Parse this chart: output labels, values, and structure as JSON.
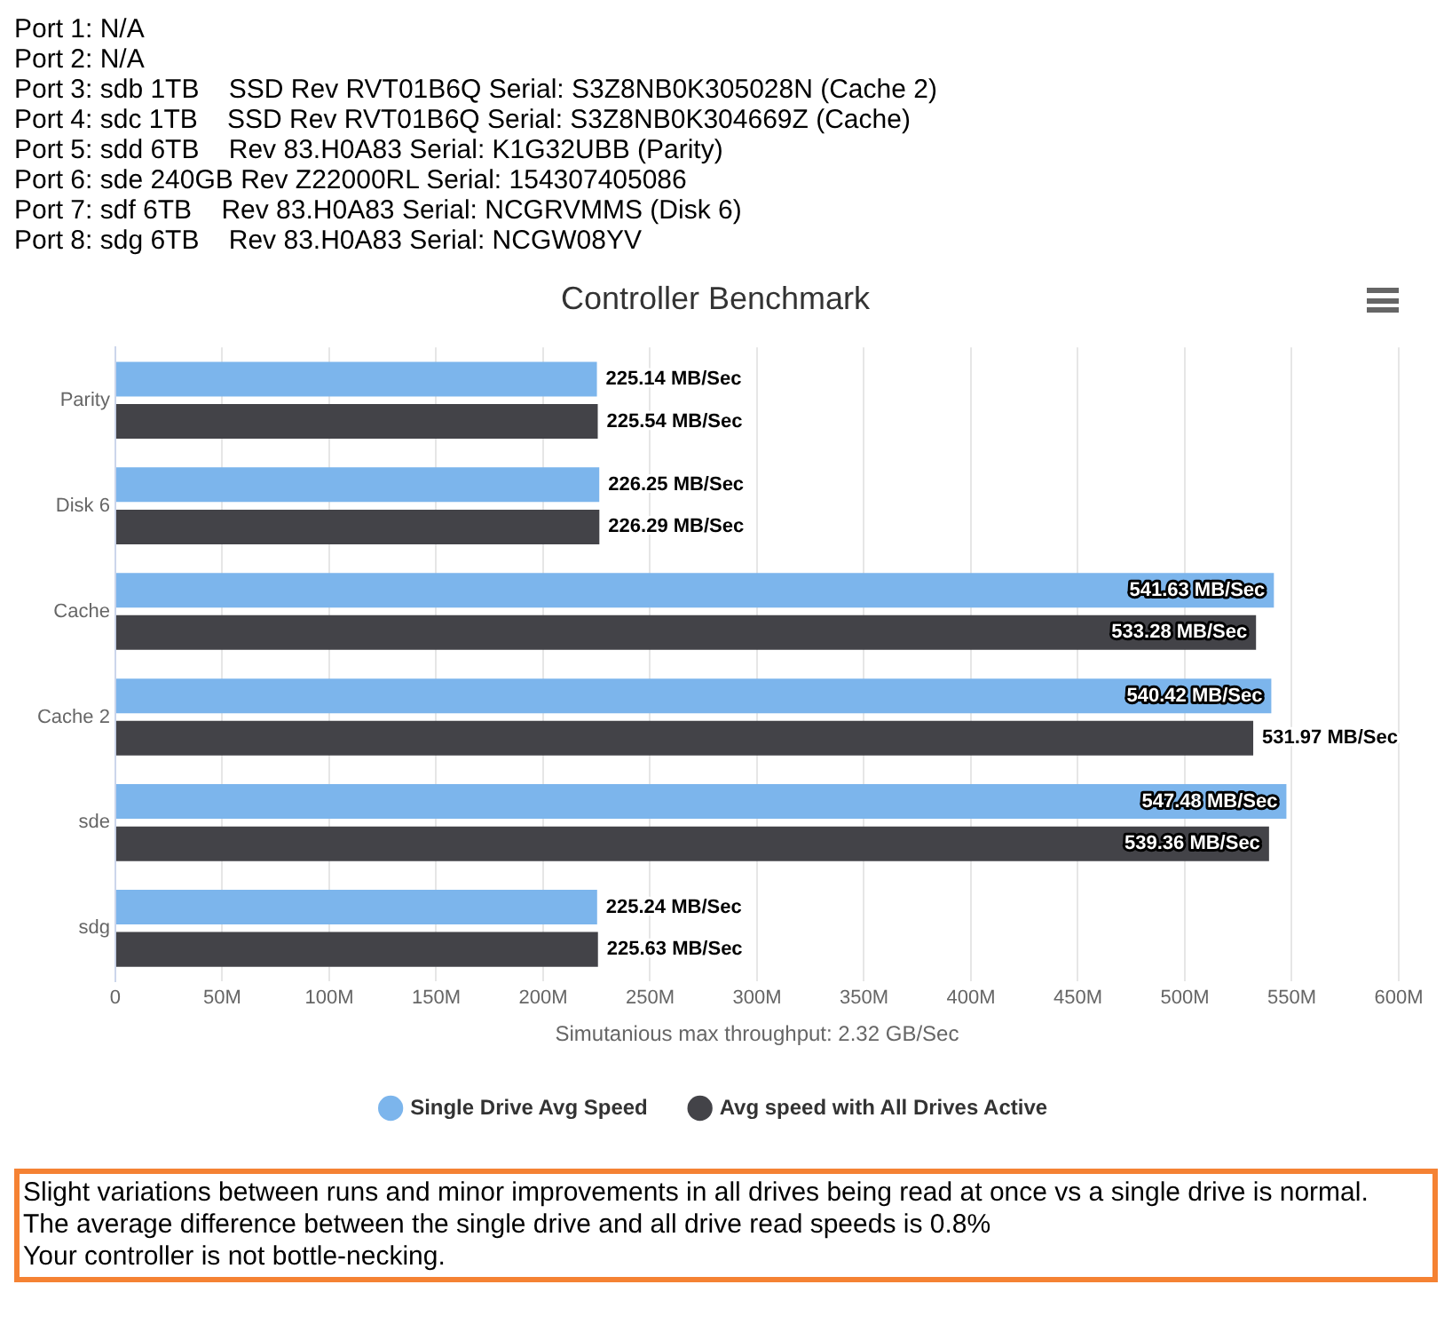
{
  "chart_data": {
    "type": "bar",
    "orientation": "horizontal",
    "title": "Controller Benchmark",
    "xlabel": "Simutanious max throughput: 2.32 GB/Sec",
    "categories": [
      "Parity",
      "Disk 6",
      "Cache",
      "Cache 2",
      "sde",
      "sdg"
    ],
    "series": [
      {
        "name": "Single Drive Avg Speed",
        "color": "#7cb5ec",
        "values": [
          225.14,
          226.25,
          541.63,
          540.42,
          547.48,
          225.24
        ],
        "value_labels": [
          "225.14 MB/Sec",
          "226.25 MB/Sec",
          "541.63 MB/Sec",
          "540.42 MB/Sec",
          "547.48 MB/Sec",
          "225.24 MB/Sec"
        ]
      },
      {
        "name": "Avg speed with All Drives Active",
        "color": "#434348",
        "values": [
          225.54,
          226.29,
          533.28,
          531.97,
          539.36,
          225.63
        ],
        "value_labels": [
          "225.54 MB/Sec",
          "226.29 MB/Sec",
          "533.28 MB/Sec",
          "531.97 MB/Sec",
          "539.36 MB/Sec",
          "225.63 MB/Sec"
        ]
      }
    ],
    "xlim": [
      0,
      600
    ],
    "xticks": [
      {
        "value": 0,
        "label": "0"
      },
      {
        "value": 50,
        "label": "50M"
      },
      {
        "value": 100,
        "label": "100M"
      },
      {
        "value": 150,
        "label": "150M"
      },
      {
        "value": 200,
        "label": "200M"
      },
      {
        "value": 250,
        "label": "250M"
      },
      {
        "value": 300,
        "label": "300M"
      },
      {
        "value": 350,
        "label": "350M"
      },
      {
        "value": 400,
        "label": "400M"
      },
      {
        "value": 450,
        "label": "450M"
      },
      {
        "value": 500,
        "label": "500M"
      },
      {
        "value": 550,
        "label": "550M"
      },
      {
        "value": 600,
        "label": "600M"
      }
    ],
    "grid": "x",
    "legend": "bottom",
    "marker": "circle",
    "annotations": [
      "Port 1: N/A",
      "Port 2: N/A",
      "Port 3: sdb 1TB    SSD Rev RVT01B6Q Serial: S3Z8NB0K305028N (Cache 2)",
      "Port 4: sdc 1TB    SSD Rev RVT01B6Q Serial: S3Z8NB0K304669Z (Cache)",
      "Port 5: sdd 6TB    Rev 83.H0A83 Serial: K1G32UBB (Parity)",
      "Port 6: sde 240GB Rev Z22000RL Serial: 154307405086",
      "Port 7: sdf 6TB    Rev 83.H0A83 Serial: NCGRVMMS (Disk 6)",
      "Port 8: sdg 6TB    Rev 83.H0A83 Serial: NCGW08YV",
      "Slight variations between runs and minor improvements in all drives being read at once vs a single drive is normal.",
      "The average difference between the single drive and all drive read speeds is 0.8%",
      "Your controller is not bottle-necking."
    ]
  }
}
